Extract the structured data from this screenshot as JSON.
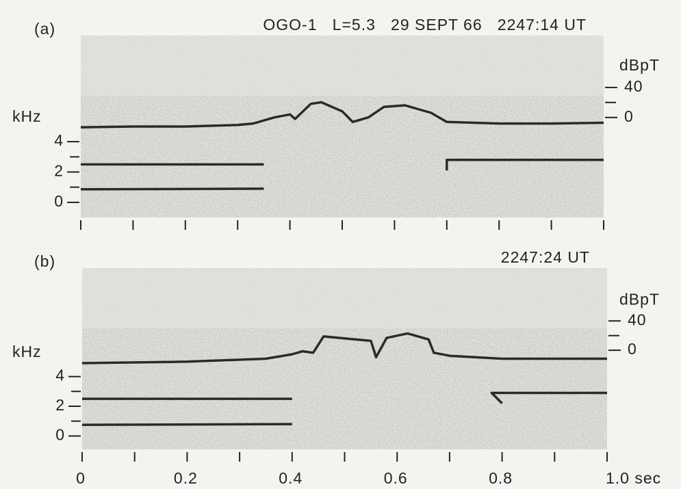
{
  "chart_data": [
    {
      "type": "spectrogram",
      "panel_label": "(a)",
      "title": "OGO-1   L=5.3   29 SEPT 66   2247:14 UT",
      "ylabel": "kHz",
      "y2label": "dBpT",
      "xlim": [
        0,
        1.0
      ],
      "xminor": [
        0,
        0.1,
        0.2,
        0.3,
        0.4,
        0.5,
        0.6,
        0.7,
        0.8,
        0.9,
        1.0
      ],
      "ylim": [
        -1,
        11
      ],
      "yticks": [
        0,
        2,
        4
      ],
      "yminor": [
        1,
        3
      ],
      "y2lim": [
        -133,
        109
      ],
      "y2ticks": [
        0,
        40
      ],
      "y2minor": [
        20
      ],
      "series": [
        {
          "color": "#2a2a2a",
          "x": [
            0,
            0.1,
            0.2,
            0.3,
            0.33,
            0.37,
            0.4,
            0.41,
            0.44,
            0.46,
            0.5,
            0.52,
            0.55,
            0.58,
            0.62,
            0.67,
            0.7,
            0.8,
            0.9,
            1.0
          ],
          "values": [
            4.95,
            5.0,
            5.0,
            5.1,
            5.2,
            5.6,
            5.8,
            5.5,
            6.5,
            6.6,
            6.0,
            5.3,
            5.6,
            6.3,
            6.4,
            5.9,
            5.3,
            5.2,
            5.2,
            5.25
          ]
        },
        {
          "color": "#2a2a2a",
          "x": [
            0,
            0.35,
            0.35,
            0.7,
            0.7,
            1.0
          ],
          "values": [
            2.5,
            2.5,
            null,
            2.1,
            2.8,
            2.8
          ]
        },
        {
          "color": "#2a2a2a",
          "x": [
            0,
            0.35,
            0.71,
            1.0
          ],
          "values": [
            0.86,
            0.9,
            null,
            1.1
          ]
        }
      ]
    },
    {
      "type": "spectrogram",
      "panel_label": "(b)",
      "title": "2247:24 UT",
      "ylabel": "kHz",
      "y2label": "dBpT",
      "xlim": [
        0,
        1.0
      ],
      "xticks": [
        0,
        0.2,
        0.4,
        0.6,
        0.8,
        {
          "value": 1.0,
          "label": "1.0 sec"
        }
      ],
      "xminor": [
        0.1,
        0.3,
        0.5,
        0.7,
        0.9
      ],
      "ylim": [
        -0.9,
        11.3
      ],
      "yticks": [
        0,
        2,
        4
      ],
      "yminor": [
        1,
        3
      ],
      "y2lim": [
        -135,
        112
      ],
      "y2ticks": [
        0,
        40
      ],
      "y2minor": [
        20
      ],
      "series": [
        {
          "color": "#2a2a2a",
          "x": [
            0,
            0.2,
            0.35,
            0.4,
            0.42,
            0.44,
            0.46,
            0.55,
            0.56,
            0.58,
            0.62,
            0.66,
            0.67,
            0.7,
            0.8,
            1.0
          ],
          "values": [
            4.9,
            5.0,
            5.2,
            5.5,
            5.7,
            5.6,
            6.7,
            6.4,
            5.3,
            6.6,
            6.9,
            6.5,
            5.6,
            5.4,
            5.2,
            5.2
          ]
        },
        {
          "color": "#2a2a2a",
          "x": [
            0,
            0.4,
            0.4,
            0.8,
            0.78,
            1.0
          ],
          "values": [
            2.5,
            2.5,
            null,
            2.2,
            2.9,
            2.9
          ]
        },
        {
          "color": "#2a2a2a",
          "x": [
            0,
            0.4,
            0.74,
            1.0
          ],
          "values": [
            0.75,
            0.8,
            null,
            1.2
          ]
        }
      ]
    }
  ]
}
